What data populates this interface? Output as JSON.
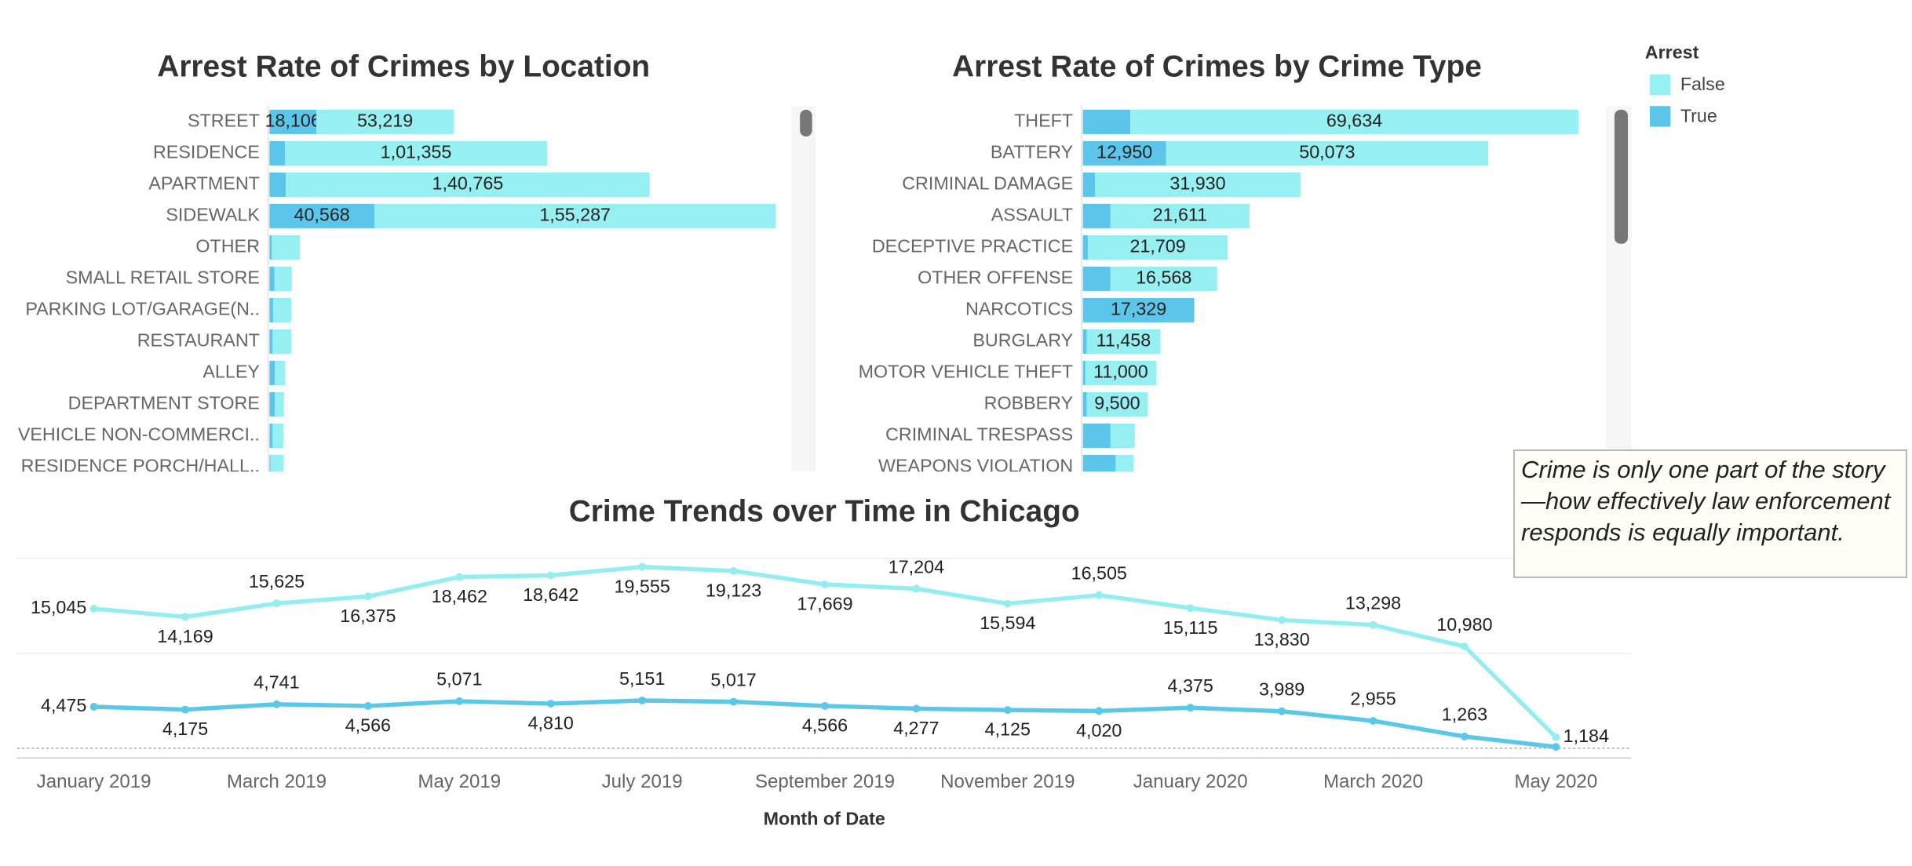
{
  "chart_data": [
    {
      "type": "bar",
      "orientation": "horizontal",
      "stacked": true,
      "title": "Arrest Rate of Crimes by Location",
      "categories": [
        "STREET",
        "RESIDENCE",
        "APARTMENT",
        "SIDEWALK",
        "OTHER",
        "SMALL RETAIL STORE",
        "PARKING LOT/GARAGE(N..",
        "RESTAURANT",
        "ALLEY",
        "DEPARTMENT STORE",
        "VEHICLE NON-COMMERCI..",
        "RESIDENCE PORCH/HALL.."
      ],
      "series": [
        {
          "name": "True",
          "color": "#5bc6ea",
          "values": [
            18106,
            6000,
            6300,
            40568,
            900,
            1900,
            1400,
            1200,
            2100,
            2100,
            1200,
            400
          ],
          "value_labels": [
            "18,106",
            null,
            null,
            "40,568",
            null,
            null,
            null,
            null,
            null,
            null,
            null,
            null
          ]
        },
        {
          "name": "False",
          "color": "#96eff0",
          "values": [
            53219,
            101355,
            140765,
            155287,
            10900,
            6700,
            7000,
            7200,
            4000,
            3500,
            4200,
            5100
          ],
          "value_labels": [
            "53,219",
            "1,01,355",
            "1,40,765",
            "1,55,287",
            null,
            null,
            null,
            null,
            null,
            null,
            null,
            null
          ]
        }
      ],
      "xlim": [
        0,
        200000
      ]
    },
    {
      "type": "bar",
      "orientation": "horizontal",
      "stacked": true,
      "title": "Arrest Rate of Crimes by Crime Type",
      "categories": [
        "THEFT",
        "BATTERY",
        "CRIMINAL DAMAGE",
        "ASSAULT",
        "DECEPTIVE PRACTICE",
        "OTHER OFFENSE",
        "NARCOTICS",
        "BURGLARY",
        "MOTOR VEHICLE THEFT",
        "ROBBERY",
        "CRIMINAL TRESPASS",
        "WEAPONS VIOLATION"
      ],
      "series": [
        {
          "name": "True",
          "color": "#5bc6ea",
          "values": [
            7400,
            12950,
            1900,
            4300,
            800,
            4300,
            17329,
            600,
            400,
            600,
            4300,
            5100
          ],
          "value_labels": [
            null,
            "12,950",
            null,
            null,
            null,
            null,
            "17,329",
            null,
            null,
            null,
            null,
            null
          ]
        },
        {
          "name": "False",
          "color": "#96eff0",
          "values": [
            69634,
            50073,
            31930,
            21611,
            21709,
            16568,
            0,
            11458,
            11000,
            9500,
            3800,
            2800
          ],
          "value_labels": [
            "69,634",
            "50,073",
            "31,930",
            "21,611",
            "21,709",
            "16,568",
            null,
            "11,458",
            "11,000",
            "9,500",
            null,
            null
          ]
        }
      ],
      "xlim": [
        0,
        80000
      ]
    },
    {
      "type": "line",
      "title": "Crime Trends over Time in Chicago",
      "x_label": "Month of Date",
      "categories": [
        "January 2019",
        null,
        "March 2019",
        null,
        "May 2019",
        null,
        "July 2019",
        null,
        "September 2019",
        null,
        "November 2019",
        null,
        "January 2020",
        null,
        "March 2020",
        null,
        "May 2020"
      ],
      "series": [
        {
          "name": "False",
          "color": "#94eef0",
          "values": [
            15045,
            14169,
            15625,
            16375,
            18462,
            18642,
            19555,
            19123,
            17669,
            17204,
            15594,
            16505,
            15115,
            13830,
            13298,
            10980,
            1184
          ],
          "value_labels": [
            "15,045",
            "14,169",
            "15,625",
            "16,375",
            "18,462",
            "18,642",
            "19,555",
            "19,123",
            "17,669",
            "17,204",
            "15,594",
            "16,505",
            "15,115",
            "13,830",
            "13,298",
            "10,980",
            "1,184"
          ]
        },
        {
          "name": "True",
          "color": "#5bc8e8",
          "values": [
            4475,
            4175,
            4741,
            4566,
            5071,
            4810,
            5151,
            5017,
            4566,
            4277,
            4125,
            4020,
            4375,
            3989,
            2955,
            1263,
            150
          ],
          "value_labels": [
            "4,475",
            "4,175",
            "4,741",
            "4,566",
            "5,071",
            "4,810",
            "5,151",
            "5,017",
            "4,566",
            "4,277",
            "4,125",
            "4,020",
            "4,375",
            "3,989",
            "2,955",
            "1,263",
            null
          ]
        }
      ],
      "ylim": [
        0,
        20500
      ]
    }
  ],
  "legend": {
    "title": "Arrest",
    "position": "right"
  },
  "annotation": "Crime is only one part of the story—how effectively law enforcement responds is equally important."
}
